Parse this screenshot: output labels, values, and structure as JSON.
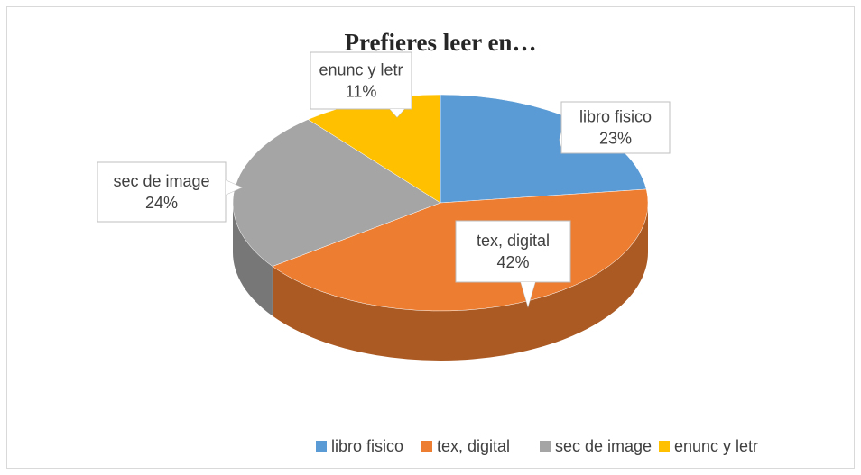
{
  "chart_data": {
    "type": "pie",
    "title": "Prefieres leer en…",
    "categories": [
      "libro fisico",
      "tex, digital",
      "sec de image",
      "enunc y letr"
    ],
    "values": [
      23,
      42,
      24,
      11
    ],
    "value_labels": [
      "23%",
      "42%",
      "24%",
      "11%"
    ],
    "colors": [
      "#5b9bd5",
      "#ed7d31",
      "#a5a5a5",
      "#ffc000"
    ],
    "legend": "bottom"
  }
}
